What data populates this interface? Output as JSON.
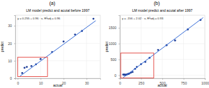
{
  "chart_data": [
    {
      "type": "scatter",
      "panel_label": "(a)",
      "title": "LM model predict and acutal before 1997",
      "annotation": "y = 0.255 + 0.96 · x, R²adj = 0.96",
      "x_label": "actual",
      "y_label": "predict",
      "xlim": [
        -1,
        36
      ],
      "ylim": [
        0,
        36
      ],
      "xticks": [
        0,
        10,
        20,
        30
      ],
      "yticks": [
        0,
        10,
        20,
        30
      ],
      "grid": true,
      "series": [
        {
          "type": "scatter",
          "color": "#1f3f99",
          "marker": "circle",
          "x": [
            2,
            3,
            4,
            6,
            8,
            10,
            15,
            20,
            25,
            28,
            33
          ],
          "values": [
            3,
            6,
            6.5,
            7,
            8,
            11,
            15,
            21,
            25,
            27,
            34
          ]
        },
        {
          "type": "line",
          "color": "#3a6fd8",
          "line_style": "solid",
          "x": [
            1,
            34
          ],
          "values": [
            1.2,
            32.9
          ]
        }
      ],
      "highlight": {
        "x": [
          0,
          13
        ],
        "y": [
          1,
          12
        ],
        "color": "#e0302a"
      }
    },
    {
      "type": "scatter",
      "panel_label": "(b)",
      "title": "LM model predict and acutal after 1997",
      "annotation": "y = -156 + 2.02 · x, R²adj = 0.93",
      "x_label": "actual",
      "y_label": "predict",
      "xlim": [
        0,
        1000
      ],
      "ylim": [
        -100,
        1900
      ],
      "xticks": [
        0,
        250,
        500,
        750,
        1000
      ],
      "yticks": [
        0,
        500,
        1000,
        1500
      ],
      "grid": true,
      "series": [
        {
          "type": "scatter",
          "color": "#1f3f99",
          "marker": "circle",
          "x": [
            40,
            50,
            60,
            70,
            80,
            90,
            100,
            110,
            130,
            150,
            180,
            200,
            250,
            300,
            350,
            450,
            550,
            650,
            800,
            950
          ],
          "values": [
            20,
            10,
            15,
            5,
            20,
            30,
            40,
            50,
            80,
            100,
            200,
            260,
            350,
            420,
            550,
            800,
            950,
            1100,
            1450,
            1750
          ]
        },
        {
          "type": "line",
          "color": "#3a6fd8",
          "line_style": "solid",
          "x": [
            40,
            980
          ],
          "values": [
            -75,
            1824
          ]
        }
      ],
      "highlight": {
        "x": [
          10,
          400
        ],
        "y": [
          -90,
          700
        ],
        "color": "#e0302a"
      }
    }
  ]
}
